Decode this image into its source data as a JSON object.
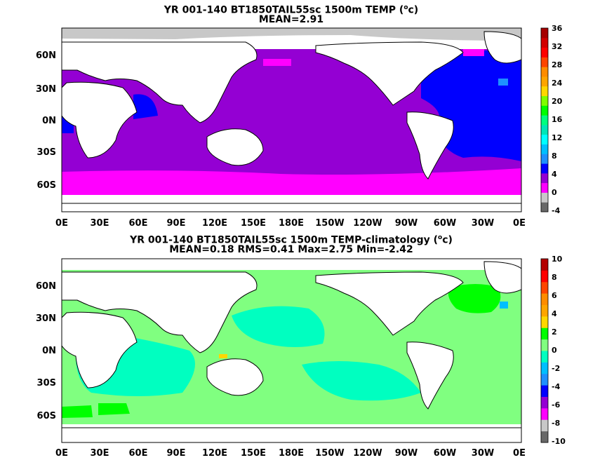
{
  "panels": [
    {
      "title": "YR 001-140 BT1850TAIL55sc 1500m TEMP (",
      "title_super": "o",
      "title_end": "c)",
      "subtitle": "MEAN=2.91",
      "colorbar_labels": [
        "36",
        "32",
        "28",
        "24",
        "20",
        "16",
        "12",
        "8",
        "4",
        "0",
        "-4"
      ]
    },
    {
      "title": "YR 001-140 BT1850TAIL55sc 1500m TEMP-climatology (",
      "title_super": "o",
      "title_end": "c)",
      "subtitle": "MEAN=0.18   RMS=0.41   Max=2.75   Min=-2.42",
      "colorbar_labels": [
        "10",
        "8",
        "6",
        "4",
        "2",
        "0",
        "-2",
        "-4",
        "-6",
        "-8",
        "-10"
      ]
    }
  ],
  "axes": {
    "lat_labels": [
      "60N",
      "30N",
      "0N",
      "30S",
      "60S"
    ],
    "lon_labels": [
      "0E",
      "30E",
      "60E",
      "90E",
      "120E",
      "150E",
      "180E",
      "150W",
      "120W",
      "90W",
      "60W",
      "30W",
      "0E"
    ]
  },
  "colors": {
    "land": "#ffffff",
    "ice": "#c8c8c8",
    "panel1_colorbar": [
      "#686868",
      "#c8c8c8",
      "#ff00ff",
      "#9400d3",
      "#0000ff",
      "#1e90ff",
      "#00bfff",
      "#00ffff",
      "#00e6b8",
      "#00ff7f",
      "#00ff00",
      "#7fff00",
      "#ffd700",
      "#ffa500",
      "#ff8c00",
      "#ff4500",
      "#ff0000",
      "#d20000",
      "#a50000"
    ],
    "panel2_colorbar": [
      "#686868",
      "#c8c8c8",
      "#ff00ff",
      "#9400d3",
      "#0000ff",
      "#1e90ff",
      "#00bfff",
      "#00ffc0",
      "#80ff80",
      "#00ff00",
      "#ffd700",
      "#ffa500",
      "#ff8c00",
      "#ff4500",
      "#ff0000",
      "#b40000"
    ]
  }
}
